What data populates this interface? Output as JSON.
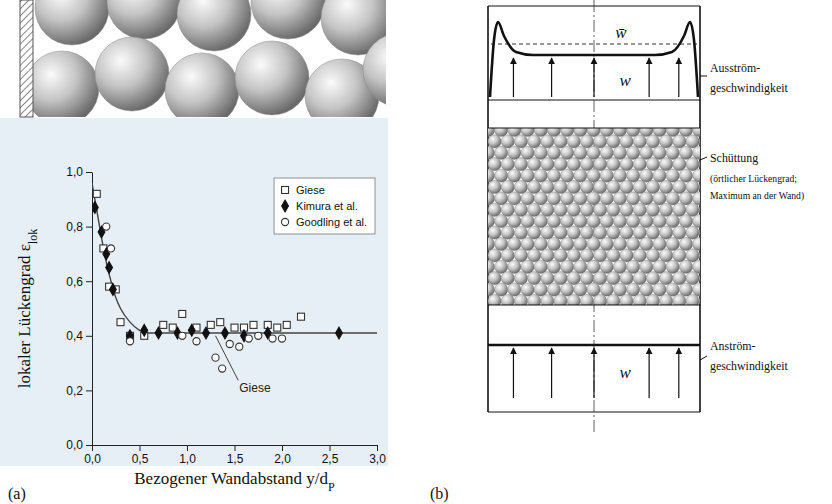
{
  "chart_data": {
    "type": "scatter",
    "xlabel": {
      "text": "Bezogener Wandabstand y/d",
      "sub": "P"
    },
    "ylabel": {
      "text": "lokaler Lückengrad ε",
      "sub": "lok"
    },
    "xlim": [
      0,
      3
    ],
    "ylim": [
      0,
      1
    ],
    "xticks": [
      {
        "value": 0,
        "label": "0,0"
      },
      {
        "value": 0.5,
        "label": "0,5"
      },
      {
        "value": 1,
        "label": "1,0"
      },
      {
        "value": 1.5,
        "label": "1,5"
      },
      {
        "value": 2,
        "label": "2,0"
      },
      {
        "value": 2.5,
        "label": "2,5"
      },
      {
        "value": 3,
        "label": "3,0"
      }
    ],
    "yticks": [
      {
        "value": 0,
        "label": "0,0"
      },
      {
        "value": 0.2,
        "label": "0,2"
      },
      {
        "value": 0.4,
        "label": "0,4"
      },
      {
        "value": 0.6,
        "label": "0,6"
      },
      {
        "value": 0.8,
        "label": "0,8"
      },
      {
        "value": 1,
        "label": "1,0"
      }
    ],
    "legend": "top-right",
    "series": [
      {
        "name": "Giese",
        "marker": "open-square",
        "color": "#333333",
        "x": [
          0.05,
          0.12,
          0.18,
          0.25,
          0.3,
          0.4,
          0.55,
          0.75,
          0.85,
          0.95,
          1.1,
          1.25,
          1.35,
          1.5,
          1.6,
          1.7,
          1.85,
          1.95,
          2.05,
          2.2
        ],
        "values": [
          0.92,
          0.72,
          0.58,
          0.57,
          0.45,
          0.4,
          0.4,
          0.44,
          0.43,
          0.48,
          0.43,
          0.44,
          0.45,
          0.43,
          0.43,
          0.44,
          0.44,
          0.43,
          0.44,
          0.47
        ]
      },
      {
        "name": "Kimura et al.",
        "marker": "filled-diamond",
        "color": "#111111",
        "x": [
          0.03,
          0.1,
          0.15,
          0.18,
          0.22,
          0.4,
          0.55,
          0.7,
          0.9,
          1.05,
          1.2,
          1.4,
          1.6,
          1.85,
          2.6
        ],
        "values": [
          0.87,
          0.78,
          0.7,
          0.65,
          0.57,
          0.4,
          0.42,
          0.41,
          0.41,
          0.42,
          0.41,
          0.41,
          0.4,
          0.41,
          0.41
        ]
      },
      {
        "name": "Goodling et al.",
        "marker": "open-circle",
        "color": "#333333",
        "x": [
          0.15,
          0.2,
          0.4,
          0.95,
          1.1,
          1.3,
          1.37,
          1.45,
          1.55,
          1.65,
          1.75,
          1.9,
          2.0
        ],
        "values": [
          0.8,
          0.72,
          0.38,
          0.4,
          0.38,
          0.32,
          0.28,
          0.37,
          0.36,
          0.39,
          0.4,
          0.39,
          0.39
        ]
      }
    ],
    "fit_line": {
      "color": "#444444",
      "x": [
        0,
        0.05,
        0.1,
        0.15,
        0.2,
        0.25,
        0.3,
        0.4,
        0.5,
        0.6,
        0.8,
        1.0,
        1.5,
        2.0,
        2.5,
        3.0
      ],
      "values": [
        0.96,
        0.86,
        0.76,
        0.67,
        0.6,
        0.54,
        0.5,
        0.45,
        0.42,
        0.41,
        0.41,
        0.41,
        0.41,
        0.41,
        0.41,
        0.41
      ]
    },
    "annotations": [
      {
        "text": "Giese",
        "x": 1.55,
        "y": 0.2,
        "target_x": 1.3,
        "target_y": 0.4
      }
    ]
  },
  "figure": {
    "panel_labels": [
      "(a)",
      "(b)"
    ]
  },
  "diagram": {
    "mean_velocity": "w̄",
    "outlet_velocity": "w",
    "inlet_velocity": "w",
    "outlet_label": [
      "Ausström-",
      "geschwindigkeit"
    ],
    "bed_label": [
      "Schüttung"
    ],
    "bed_note": [
      "(örtlicher Lückengrad;",
      "Maximum an der Wand)"
    ],
    "inlet_label": [
      "Anström-",
      "geschwindigkeit"
    ]
  }
}
